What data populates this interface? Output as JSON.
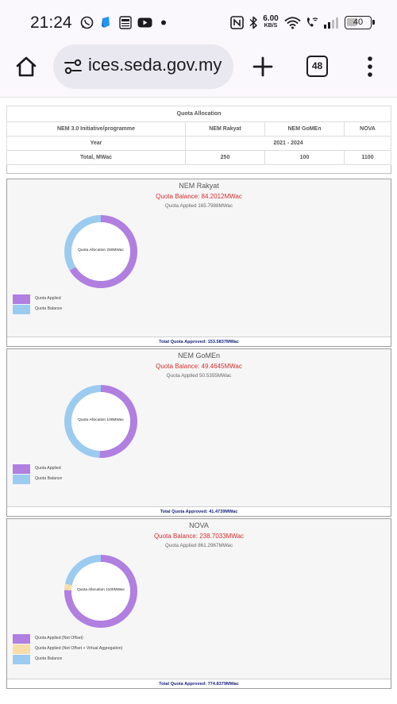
{
  "status_bar": {
    "time": "21:24",
    "speed_value": "6.00",
    "speed_unit": "KB/S",
    "battery": "40"
  },
  "browser": {
    "url": "ices.seda.gov.my",
    "tab_count": "48"
  },
  "table": {
    "title": "Quota Allocation",
    "header": [
      "NEM 3.0 Initiative/programme",
      "NEM Rakyat",
      "NEM GoMEn",
      "NOVA"
    ],
    "year_label": "Year",
    "year_value": "2021 - 2024",
    "total_label": "Total, MWac",
    "totals": [
      "250",
      "100",
      "1100"
    ]
  },
  "colors": {
    "applied": "#b07fe0",
    "balance": "#9ccbf0",
    "virtual": "#f6deaa",
    "balance_text": "#d32f2f",
    "footer_text": "#1a237e"
  },
  "panels": [
    {
      "title": "NEM Rakyat",
      "balance": "Quota Balance: 84.2012MWac",
      "applied": "Quota Applied 165.7988MWac",
      "center": "Quota Allocation 250MWac",
      "legend": [
        "Quota Applied",
        "Quota Balance"
      ],
      "footer": "Total Quota Approved: 153.5837MWac"
    },
    {
      "title": "NEM GoMEn",
      "balance": "Quota Balance: 49.4645MWac",
      "applied": "Quota Applied 50.5355MWac",
      "center": "Quota Allocation 100MWac",
      "legend": [
        "Quota Applied",
        "Quota Balance"
      ],
      "footer": "Total Quota Approved: 41.4739MWac"
    },
    {
      "title": "NOVA",
      "balance": "Quota Balance: 238.7033MWac",
      "applied": "Quota Applied 861.2967MWac",
      "center": "Quota Allocation 1100MWac",
      "legend": [
        "Quota Applied (Net Offset)",
        "Quota Applied (Net Offset + Virtual Aggregation)",
        "Quota Balance"
      ],
      "footer": "Total Quota Approved: 774.8379MWac"
    }
  ],
  "chart_data": [
    {
      "type": "pie",
      "title": "NEM Rakyat",
      "labels": [
        "Quota Applied",
        "Quota Balance"
      ],
      "values": [
        165.7988,
        84.2012
      ]
    },
    {
      "type": "pie",
      "title": "NEM GoMEn",
      "labels": [
        "Quota Applied",
        "Quota Balance"
      ],
      "values": [
        50.5355,
        49.4645
      ]
    },
    {
      "type": "pie",
      "title": "NOVA",
      "labels": [
        "Quota Applied (Net Offset)",
        "Quota Applied (Net Offset + Virtual Aggregation)",
        "Quota Balance"
      ],
      "values": [
        831,
        30.2967,
        238.7033
      ]
    }
  ]
}
